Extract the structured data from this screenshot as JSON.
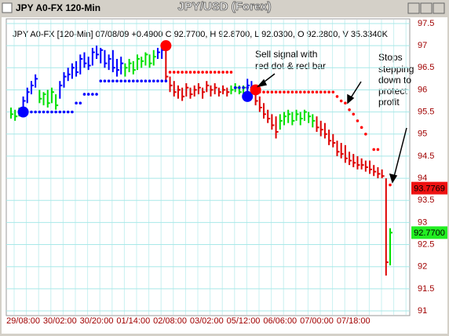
{
  "chart_data": {
    "type": "ohlc",
    "window_title": "JPY A0-FX 120-Min",
    "title": "JPY/USD (Forex)",
    "info": "JPY A0-FX [120-Min] 07/08/09 +0.4900 C 92.7700, H 92.8700, L 92.0300, O 92.2800, V 35.3340K",
    "categories": [
      null,
      null,
      null,
      "29/08:00",
      null,
      null,
      null,
      null,
      null,
      null,
      null,
      null,
      "30/02:00",
      null,
      null,
      null,
      null,
      null,
      null,
      null,
      null,
      "30/20:00",
      null,
      null,
      null,
      null,
      null,
      null,
      null,
      null,
      "01/14:00",
      null,
      null,
      null,
      null,
      null,
      null,
      null,
      null,
      "02/08:00",
      null,
      null,
      null,
      null,
      null,
      null,
      null,
      null,
      "03/02:00",
      null,
      null,
      null,
      null,
      null,
      null,
      null,
      null,
      "05/12:00",
      null,
      null,
      null,
      null,
      null,
      null,
      null,
      null,
      "06/06:00",
      null,
      null,
      null,
      null,
      null,
      null,
      null,
      null,
      "07/00:00",
      null,
      null,
      null,
      null,
      null,
      null,
      null,
      null,
      "07/18:00",
      null,
      null,
      null,
      null,
      null,
      null,
      null,
      null,
      null
    ],
    "high": [
      95.6,
      95.55,
      95.6,
      95.85,
      96.05,
      96.2,
      96.35,
      96.0,
      95.95,
      96.0,
      96.05,
      95.9,
      96.2,
      96.4,
      96.5,
      96.6,
      96.65,
      96.8,
      96.85,
      96.75,
      96.95,
      97.0,
      96.95,
      96.9,
      96.8,
      96.9,
      96.7,
      96.75,
      96.6,
      96.7,
      96.65,
      96.8,
      96.75,
      96.85,
      96.8,
      96.9,
      96.95,
      97.0,
      96.95,
      96.3,
      96.2,
      96.1,
      96.05,
      96.15,
      96.05,
      96.1,
      96.15,
      96.05,
      96.2,
      96.1,
      96.15,
      96.05,
      96.1,
      96.05,
      96.1,
      96.15,
      96.1,
      96.1,
      96.25,
      96.2,
      96.05,
      95.85,
      95.7,
      95.55,
      95.45,
      95.4,
      95.45,
      95.5,
      95.55,
      95.5,
      95.55,
      95.5,
      95.55,
      95.5,
      95.45,
      95.4,
      95.3,
      95.25,
      95.1,
      95.0,
      94.85,
      94.8,
      94.75,
      94.6,
      94.55,
      94.5,
      94.45,
      94.4,
      94.4,
      94.3,
      94.25,
      94.2,
      94.0,
      92.87
    ],
    "low": [
      95.35,
      95.3,
      95.4,
      95.45,
      95.7,
      95.9,
      96.05,
      95.7,
      95.65,
      95.6,
      95.7,
      95.55,
      95.8,
      96.05,
      96.2,
      96.25,
      96.3,
      96.35,
      96.5,
      96.45,
      96.55,
      96.7,
      96.6,
      96.5,
      96.45,
      96.4,
      96.3,
      96.35,
      96.3,
      96.4,
      96.35,
      96.45,
      96.5,
      96.55,
      96.5,
      96.55,
      96.7,
      96.7,
      96.2,
      95.95,
      95.85,
      95.8,
      95.75,
      95.85,
      95.8,
      95.85,
      95.9,
      95.8,
      95.95,
      95.85,
      95.9,
      95.85,
      95.9,
      95.85,
      95.9,
      95.95,
      95.9,
      95.9,
      95.95,
      95.9,
      95.65,
      95.5,
      95.35,
      95.25,
      95.1,
      94.9,
      95.1,
      95.2,
      95.25,
      95.2,
      95.3,
      95.2,
      95.3,
      95.25,
      95.15,
      95.05,
      94.95,
      94.9,
      94.75,
      94.7,
      94.5,
      94.45,
      94.35,
      94.3,
      94.25,
      94.2,
      94.2,
      94.15,
      94.1,
      94.05,
      94.0,
      94.0,
      91.8,
      92.03
    ],
    "close": [
      95.45,
      95.4,
      95.5,
      95.75,
      95.95,
      96.1,
      96.25,
      95.8,
      95.9,
      95.7,
      95.95,
      95.65,
      96.1,
      96.3,
      96.35,
      96.5,
      96.4,
      96.7,
      96.6,
      96.55,
      96.85,
      96.8,
      96.9,
      96.6,
      96.7,
      96.5,
      96.45,
      96.6,
      96.5,
      96.6,
      96.45,
      96.7,
      96.65,
      96.8,
      96.6,
      96.75,
      96.85,
      96.9,
      96.3,
      96.1,
      95.95,
      96.0,
      95.85,
      96.05,
      95.9,
      96.0,
      96.05,
      95.95,
      96.1,
      96.0,
      96.05,
      95.95,
      96.0,
      95.95,
      96.0,
      96.05,
      95.95,
      96.05,
      96.1,
      96.0,
      95.75,
      95.6,
      95.45,
      95.35,
      95.2,
      95.05,
      95.3,
      95.4,
      95.45,
      95.3,
      95.45,
      95.35,
      95.5,
      95.4,
      95.3,
      95.15,
      95.1,
      95.0,
      94.85,
      94.8,
      94.6,
      94.55,
      94.45,
      94.4,
      94.35,
      94.3,
      94.3,
      94.25,
      94.2,
      94.15,
      94.1,
      94.05,
      92.1,
      92.77
    ],
    "bar_colors": [
      "#00e000",
      "#00e000",
      "#00e000",
      "#0000ff",
      "#0000ff",
      "#0000ff",
      "#0000ff",
      "#00e000",
      "#00e000",
      "#00e000",
      "#00e000",
      "#00e000",
      "#0000ff",
      "#0000ff",
      "#0000ff",
      "#0000ff",
      "#0000ff",
      "#0000ff",
      "#0000ff",
      "#0000ff",
      "#0000ff",
      "#0000ff",
      "#0000ff",
      "#0000ff",
      "#0000ff",
      "#0000ff",
      "#0000ff",
      "#0000ff",
      "#00e000",
      "#00e000",
      "#00e000",
      "#00e000",
      "#00e000",
      "#00e000",
      "#00e000",
      "#00e000",
      "#0000ff",
      "#0000ff",
      "#dd0000",
      "#dd0000",
      "#dd0000",
      "#dd0000",
      "#dd0000",
      "#dd0000",
      "#dd0000",
      "#dd0000",
      "#dd0000",
      "#dd0000",
      "#dd0000",
      "#dd0000",
      "#dd0000",
      "#dd0000",
      "#dd0000",
      "#dd0000",
      "#00e000",
      "#00e000",
      "#00e000",
      "#00e000",
      "#0000ff",
      "#0000ff",
      "#dd0000",
      "#dd0000",
      "#dd0000",
      "#dd0000",
      "#dd0000",
      "#dd0000",
      "#00e000",
      "#00e000",
      "#00e000",
      "#00e000",
      "#00e000",
      "#00e000",
      "#00e000",
      "#00e000",
      "#00e000",
      "#dd0000",
      "#dd0000",
      "#dd0000",
      "#dd0000",
      "#dd0000",
      "#dd0000",
      "#dd0000",
      "#dd0000",
      "#dd0000",
      "#dd0000",
      "#dd0000",
      "#dd0000",
      "#dd0000",
      "#dd0000",
      "#dd0000",
      "#dd0000",
      "#dd0000",
      "#dd0000",
      "#00e000"
    ],
    "ylim": [
      91,
      97.5
    ],
    "yticks": [
      91,
      91.5,
      92,
      92.5,
      93,
      93.5,
      94,
      94.5,
      95,
      95.5,
      96,
      96.5,
      97,
      97.5
    ],
    "grid": true,
    "dot_series": [
      {
        "color": "#0000ff",
        "values": [
          null,
          null,
          null,
          null,
          95.5,
          95.5,
          95.5,
          95.5,
          95.5,
          95.5,
          95.5,
          95.5,
          95.5,
          95.5,
          95.5,
          95.5,
          95.7,
          95.7,
          95.9,
          95.9,
          95.9,
          95.9,
          96.2,
          96.2,
          96.2,
          96.2,
          96.2,
          96.2,
          96.2,
          96.2,
          96.2,
          96.2,
          96.2,
          96.2,
          96.2,
          96.2,
          96.2,
          96.2,
          96.2,
          null,
          null,
          null,
          null,
          null,
          null,
          null,
          null,
          null,
          null,
          null,
          null,
          null,
          null,
          null,
          null,
          96.05,
          96.05,
          96.05,
          96.05,
          96.05,
          null,
          null,
          null,
          null,
          null,
          null,
          null,
          null,
          null,
          null,
          null,
          null,
          null,
          null,
          null,
          null,
          null,
          null,
          null,
          null,
          null,
          null,
          null,
          null,
          null,
          null,
          null,
          null,
          null,
          null,
          null,
          null,
          null,
          null
        ]
      },
      {
        "color": "#ff0000",
        "values": [
          null,
          null,
          null,
          null,
          null,
          null,
          null,
          null,
          null,
          null,
          null,
          null,
          null,
          null,
          null,
          null,
          null,
          null,
          null,
          null,
          null,
          null,
          null,
          null,
          null,
          null,
          null,
          null,
          null,
          null,
          null,
          null,
          null,
          null,
          null,
          null,
          null,
          null,
          null,
          96.4,
          96.4,
          96.4,
          96.4,
          96.4,
          96.4,
          96.4,
          96.4,
          96.4,
          96.4,
          96.4,
          96.4,
          96.4,
          96.4,
          96.4,
          96.4,
          null,
          null,
          null,
          null,
          null,
          95.95,
          95.95,
          95.95,
          95.95,
          95.95,
          95.95,
          95.95,
          95.95,
          95.95,
          95.95,
          95.95,
          95.95,
          95.95,
          95.95,
          95.95,
          95.95,
          95.95,
          95.95,
          95.95,
          95.95,
          95.85,
          95.75,
          95.7,
          95.55,
          95.45,
          95.3,
          95.15,
          95.0,
          null,
          94.65,
          94.65,
          null,
          null,
          93.85
        ]
      }
    ],
    "signals": [
      {
        "index": 3,
        "value": 95.5,
        "color": "#0000ff"
      },
      {
        "index": 38,
        "value": 97.0,
        "color": "#ff0000"
      },
      {
        "index": 58,
        "value": 95.85,
        "color": "#0000ff"
      },
      {
        "index": 60,
        "value": 96.0,
        "color": "#ff0000"
      }
    ],
    "price_tags": [
      {
        "value": 93.7769,
        "label": "93.7769",
        "color": "#ee1111"
      },
      {
        "value": 92.77,
        "label": "92.7700",
        "color": "#22ee22"
      }
    ],
    "annotations": [
      {
        "lines": [
          "Sell signal with",
          "red dot & red bar"
        ]
      },
      {
        "lines": [
          "Stops",
          "stepping",
          "down to",
          "protect",
          "profit"
        ]
      }
    ]
  }
}
